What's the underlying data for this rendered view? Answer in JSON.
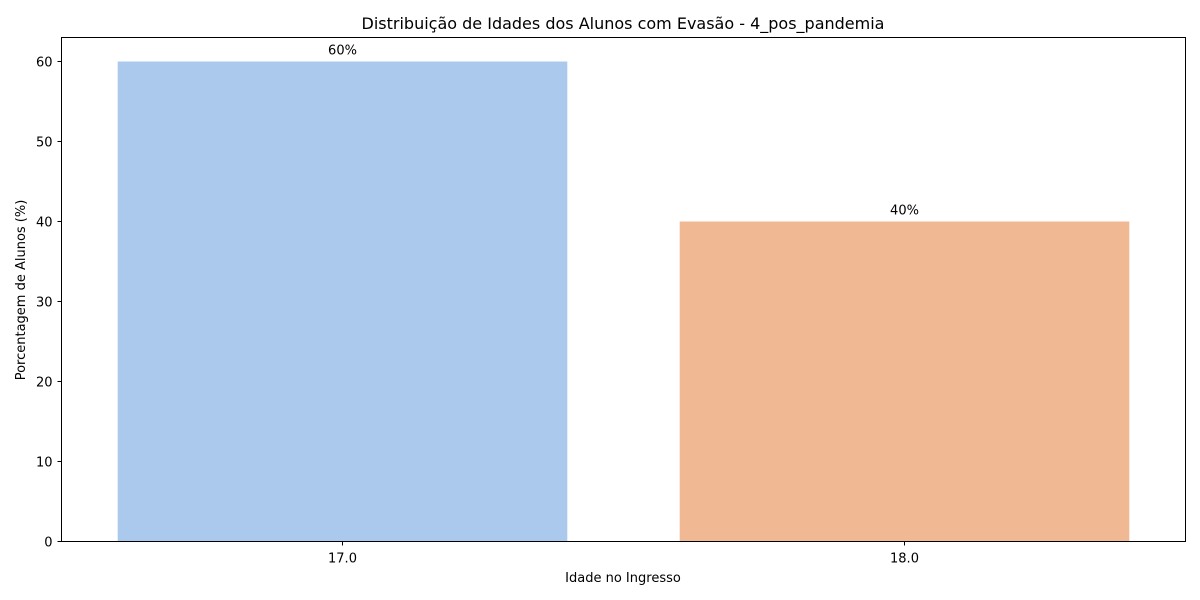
{
  "chart_data": {
    "type": "bar",
    "title": "Distribuição de Idades dos Alunos com Evasão - 4_pos_pandemia",
    "xlabel": "Idade no Ingresso",
    "ylabel": "Porcentagem de Alunos (%)",
    "categories": [
      "17.0",
      "18.0"
    ],
    "values": [
      60,
      40
    ],
    "data_labels": [
      "60%",
      "40%"
    ],
    "colors": [
      "#abc9ed",
      "#f0b893"
    ],
    "ylim": [
      0,
      63
    ],
    "yticks": [
      0,
      10,
      20,
      30,
      40,
      50,
      60
    ],
    "grid": false
  }
}
